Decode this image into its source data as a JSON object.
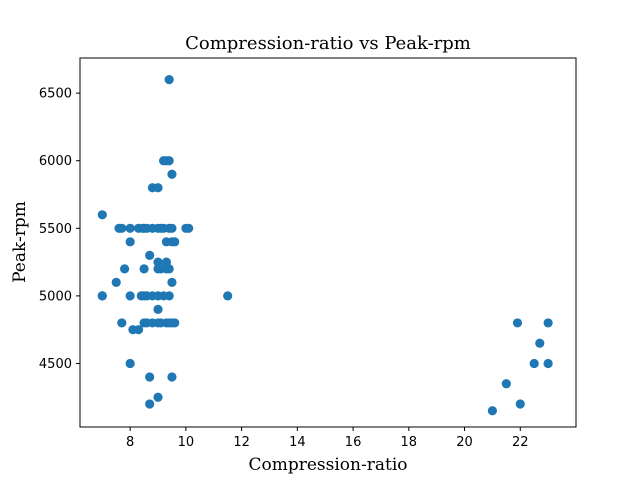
{
  "chart_data": {
    "type": "scatter",
    "title": "Compression-ratio vs Peak-rpm",
    "xlabel": "Compression-ratio",
    "ylabel": "Peak-rpm",
    "xlim": [
      6.2,
      24.0
    ],
    "ylim": [
      4030,
      6760
    ],
    "xticks": [
      8,
      10,
      12,
      14,
      16,
      18,
      20,
      22
    ],
    "yticks": [
      4500,
      5000,
      5500,
      6000,
      6500
    ],
    "grid": false,
    "color": "#1f77b4",
    "points": [
      {
        "x": 7.0,
        "y": 5600
      },
      {
        "x": 7.0,
        "y": 5000
      },
      {
        "x": 7.0,
        "y": 5000
      },
      {
        "x": 7.5,
        "y": 5100
      },
      {
        "x": 7.6,
        "y": 5500
      },
      {
        "x": 7.7,
        "y": 5500
      },
      {
        "x": 7.7,
        "y": 4800
      },
      {
        "x": 7.8,
        "y": 5200
      },
      {
        "x": 8.0,
        "y": 5500
      },
      {
        "x": 8.0,
        "y": 5400
      },
      {
        "x": 8.0,
        "y": 5000
      },
      {
        "x": 8.0,
        "y": 4500
      },
      {
        "x": 8.1,
        "y": 4750
      },
      {
        "x": 8.3,
        "y": 5500
      },
      {
        "x": 8.3,
        "y": 4750
      },
      {
        "x": 8.4,
        "y": 5000
      },
      {
        "x": 8.45,
        "y": 5500
      },
      {
        "x": 8.5,
        "y": 5500
      },
      {
        "x": 8.5,
        "y": 5200
      },
      {
        "x": 8.5,
        "y": 5000
      },
      {
        "x": 8.5,
        "y": 4800
      },
      {
        "x": 8.6,
        "y": 5000
      },
      {
        "x": 8.6,
        "y": 5500
      },
      {
        "x": 8.6,
        "y": 4800
      },
      {
        "x": 8.7,
        "y": 5300
      },
      {
        "x": 8.7,
        "y": 4400
      },
      {
        "x": 8.7,
        "y": 4200
      },
      {
        "x": 8.8,
        "y": 5800
      },
      {
        "x": 8.8,
        "y": 5500
      },
      {
        "x": 8.8,
        "y": 5000
      },
      {
        "x": 8.8,
        "y": 4800
      },
      {
        "x": 9.0,
        "y": 5800
      },
      {
        "x": 9.0,
        "y": 5500
      },
      {
        "x": 9.0,
        "y": 5250
      },
      {
        "x": 9.0,
        "y": 5200
      },
      {
        "x": 9.0,
        "y": 5000
      },
      {
        "x": 9.0,
        "y": 4900
      },
      {
        "x": 9.0,
        "y": 4800
      },
      {
        "x": 9.0,
        "y": 4250
      },
      {
        "x": 9.1,
        "y": 5500
      },
      {
        "x": 9.1,
        "y": 5200
      },
      {
        "x": 9.1,
        "y": 4800
      },
      {
        "x": 9.2,
        "y": 6000
      },
      {
        "x": 9.2,
        "y": 5500
      },
      {
        "x": 9.2,
        "y": 5000
      },
      {
        "x": 9.3,
        "y": 6000
      },
      {
        "x": 9.3,
        "y": 5400
      },
      {
        "x": 9.3,
        "y": 5250
      },
      {
        "x": 9.3,
        "y": 5200
      },
      {
        "x": 9.3,
        "y": 4800
      },
      {
        "x": 9.4,
        "y": 6600
      },
      {
        "x": 9.4,
        "y": 6000
      },
      {
        "x": 9.4,
        "y": 5500
      },
      {
        "x": 9.4,
        "y": 5200
      },
      {
        "x": 9.4,
        "y": 5000
      },
      {
        "x": 9.4,
        "y": 4800
      },
      {
        "x": 9.5,
        "y": 5900
      },
      {
        "x": 9.5,
        "y": 5500
      },
      {
        "x": 9.5,
        "y": 5400
      },
      {
        "x": 9.5,
        "y": 5100
      },
      {
        "x": 9.5,
        "y": 4800
      },
      {
        "x": 9.5,
        "y": 4400
      },
      {
        "x": 9.6,
        "y": 5400
      },
      {
        "x": 9.6,
        "y": 4800
      },
      {
        "x": 10.0,
        "y": 5500
      },
      {
        "x": 10.1,
        "y": 5500
      },
      {
        "x": 11.5,
        "y": 5000
      },
      {
        "x": 21.0,
        "y": 4150
      },
      {
        "x": 21.5,
        "y": 4350
      },
      {
        "x": 21.9,
        "y": 4800
      },
      {
        "x": 22.0,
        "y": 4200
      },
      {
        "x": 22.5,
        "y": 4500
      },
      {
        "x": 22.7,
        "y": 4650
      },
      {
        "x": 23.0,
        "y": 4800
      },
      {
        "x": 23.0,
        "y": 4500
      }
    ]
  }
}
